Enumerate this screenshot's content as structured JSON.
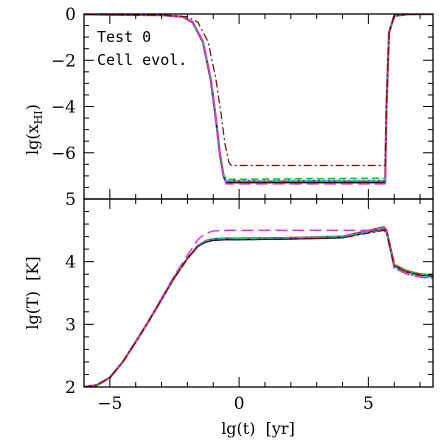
{
  "chart_data": [
    {
      "type": "line",
      "panel": "top",
      "ylabel_main": "lg(x",
      "ylabel_sub": "HI",
      "ylabel_end": ")",
      "xlim": [
        -6,
        7.5
      ],
      "ylim": [
        -8,
        0
      ],
      "yticks": [
        0,
        -2,
        -4,
        -6
      ],
      "ytick_labels": [
        "0",
        "−2",
        "−4",
        "−6"
      ],
      "annotations": [
        "Test 0",
        "Cell evol."
      ],
      "series": [
        {
          "color": "#e02020",
          "style": "solid",
          "width": 2.2,
          "x": [
            -6,
            -3,
            -2.2,
            -1.8,
            -1.4,
            -1.1,
            -0.9,
            -0.75,
            -0.6,
            -0.5,
            5.65,
            5.7,
            5.8,
            6.0,
            6.5,
            7.5
          ],
          "y": [
            -0.02,
            -0.05,
            -0.12,
            -0.35,
            -1.2,
            -2.8,
            -4.5,
            -6.0,
            -7.0,
            -7.25,
            -7.25,
            -4.0,
            -0.8,
            -0.08,
            -0.01,
            0
          ]
        },
        {
          "color": "#000000",
          "style": "solid",
          "width": 1.2,
          "x": [
            -6,
            -3,
            -2.2,
            -1.8,
            -1.4,
            -1.1,
            -0.9,
            -0.75,
            -0.6,
            -0.5,
            5.65,
            5.7,
            5.8,
            6.0,
            6.5,
            7.5
          ],
          "y": [
            -0.02,
            -0.05,
            -0.12,
            -0.38,
            -1.25,
            -2.9,
            -4.6,
            -6.1,
            -7.05,
            -7.3,
            -7.3,
            -4.0,
            -0.8,
            -0.08,
            -0.01,
            0
          ]
        },
        {
          "color": "#22c022",
          "style": "dashed",
          "width": 1.6,
          "x": [
            -6,
            -3,
            -2.2,
            -1.8,
            -1.4,
            -1.1,
            -0.9,
            -0.75,
            -0.6,
            -0.5,
            5.65,
            5.7,
            5.8,
            6.0,
            6.5,
            7.5
          ],
          "y": [
            -0.02,
            -0.05,
            -0.12,
            -0.35,
            -1.2,
            -2.8,
            -4.5,
            -6.0,
            -6.95,
            -7.15,
            -7.1,
            -4.0,
            -0.8,
            -0.08,
            -0.01,
            0
          ]
        },
        {
          "color": "#2050e0",
          "style": "dotted",
          "width": 1.6,
          "x": [
            -6,
            -3,
            -2.2,
            -1.8,
            -1.4,
            -1.1,
            -0.9,
            -0.75,
            -0.6,
            -0.5,
            5.65,
            5.7,
            5.8,
            6.0,
            6.5,
            7.5
          ],
          "y": [
            -0.02,
            -0.05,
            -0.12,
            -0.35,
            -1.2,
            -2.8,
            -4.5,
            -6.0,
            -7.0,
            -7.2,
            -7.2,
            -4.0,
            -0.8,
            -0.08,
            -0.01,
            0
          ]
        },
        {
          "color": "#20b8c8",
          "style": "dashdot",
          "width": 1.4,
          "x": [
            -6,
            -3,
            -2.2,
            -1.8,
            -1.4,
            -1.1,
            -0.9,
            -0.75,
            -0.6,
            -0.5,
            5.65,
            5.7,
            5.8,
            6.0,
            6.5,
            7.5
          ],
          "y": [
            -0.02,
            -0.05,
            -0.12,
            -0.35,
            -1.2,
            -2.8,
            -4.5,
            -6.0,
            -7.0,
            -7.22,
            -7.22,
            -4.0,
            -0.8,
            -0.08,
            -0.01,
            0
          ]
        },
        {
          "color": "#e030e0",
          "style": "longdash",
          "width": 1.4,
          "x": [
            -6,
            -3,
            -2.2,
            -1.8,
            -1.4,
            -1.1,
            -0.9,
            -0.75,
            -0.6,
            -0.5,
            5.65,
            5.7,
            5.8,
            6.0,
            6.5,
            7.5
          ],
          "y": [
            -0.02,
            -0.05,
            -0.12,
            -0.35,
            -1.2,
            -2.8,
            -4.5,
            -6.0,
            -7.0,
            -7.35,
            -7.35,
            -4.0,
            -0.8,
            -0.08,
            -0.01,
            0
          ]
        },
        {
          "color": "#800000",
          "style": "dashdot",
          "width": 1.2,
          "x": [
            -6,
            -3,
            -2.0,
            -1.6,
            -1.2,
            -0.9,
            -0.7,
            -0.55,
            -0.4,
            -0.3,
            5.65,
            5.7,
            5.8,
            6.0,
            6.5,
            7.5
          ],
          "y": [
            -0.02,
            -0.05,
            -0.12,
            -0.35,
            -1.2,
            -2.8,
            -4.3,
            -5.6,
            -6.4,
            -6.55,
            -6.55,
            -4.0,
            -0.8,
            -0.08,
            -0.01,
            0
          ]
        }
      ]
    },
    {
      "type": "line",
      "panel": "bottom",
      "ylabel": "lg(T)  [K]",
      "xlabel": "lg(t)  [yr]",
      "xlim": [
        -6,
        7.5
      ],
      "ylim": [
        2,
        5
      ],
      "yticks": [
        2,
        3,
        4,
        5
      ],
      "ytick_labels": [
        "2",
        "3",
        "4",
        "5"
      ],
      "xticks": [
        -5,
        0,
        5
      ],
      "xtick_labels": [
        "−5",
        "0",
        "5"
      ],
      "series": [
        {
          "color": "#e02020",
          "style": "solid",
          "width": 2.2,
          "x": [
            -6,
            -5.5,
            -5,
            -4.5,
            -4,
            -3.5,
            -3,
            -2.5,
            -2,
            -1.6,
            -1.3,
            -1.0,
            -0.5,
            0,
            2,
            4,
            5.6,
            5.7,
            6,
            6.5,
            7,
            7.5
          ],
          "y": [
            2.0,
            2.03,
            2.15,
            2.4,
            2.72,
            3.05,
            3.4,
            3.75,
            4.05,
            4.25,
            4.33,
            4.36,
            4.37,
            4.37,
            4.38,
            4.4,
            4.55,
            4.5,
            3.95,
            3.85,
            3.8,
            3.78
          ]
        },
        {
          "color": "#000000",
          "style": "solid",
          "width": 1.2,
          "x": [
            -6,
            -5.5,
            -5,
            -4.5,
            -4,
            -3.5,
            -3,
            -2.5,
            -2,
            -1.6,
            -1.3,
            -1.0,
            -0.5,
            0,
            2,
            4,
            5.6,
            5.7,
            6,
            6.5,
            7,
            7.5
          ],
          "y": [
            2.0,
            2.03,
            2.15,
            2.4,
            2.72,
            3.05,
            3.4,
            3.75,
            4.05,
            4.24,
            4.31,
            4.34,
            4.35,
            4.35,
            4.36,
            4.38,
            4.52,
            4.47,
            3.93,
            3.83,
            3.78,
            3.76
          ]
        },
        {
          "color": "#22c022",
          "style": "dashed",
          "width": 1.6,
          "x": [
            -6,
            -5.5,
            -5,
            -4.5,
            -4,
            -3.5,
            -3,
            -2.5,
            -2,
            -1.6,
            -1.3,
            -1.0,
            -0.5,
            0,
            2,
            4,
            5.6,
            5.7,
            6,
            6.5,
            7,
            7.5
          ],
          "y": [
            2.0,
            2.03,
            2.15,
            2.4,
            2.72,
            3.05,
            3.4,
            3.75,
            4.05,
            4.25,
            4.33,
            4.36,
            4.37,
            4.37,
            4.38,
            4.4,
            4.5,
            4.46,
            3.95,
            3.85,
            3.8,
            3.78
          ]
        },
        {
          "color": "#2050e0",
          "style": "dotted",
          "width": 1.6,
          "x": [
            -6,
            -5.5,
            -5,
            -4.5,
            -4,
            -3.5,
            -3,
            -2.5,
            -2,
            -1.6,
            -1.3,
            -1.0,
            -0.5,
            0,
            2,
            4,
            5.6,
            5.7,
            6,
            6.5,
            7,
            7.5
          ],
          "y": [
            2.0,
            2.03,
            2.15,
            2.4,
            2.72,
            3.05,
            3.4,
            3.75,
            4.05,
            4.25,
            4.33,
            4.36,
            4.37,
            4.37,
            4.38,
            4.4,
            4.53,
            4.48,
            3.9,
            3.8,
            3.76,
            3.74
          ]
        },
        {
          "color": "#20b8c8",
          "style": "dashdot",
          "width": 1.4,
          "x": [
            -6,
            -5.5,
            -5,
            -4.5,
            -4,
            -3.5,
            -3,
            -2.5,
            -2,
            -1.6,
            -1.3,
            -1.0,
            -0.5,
            0,
            2,
            4,
            5.6,
            5.7,
            6,
            6.5,
            7,
            7.5
          ],
          "y": [
            2.0,
            2.03,
            2.15,
            2.4,
            2.72,
            3.05,
            3.4,
            3.75,
            4.05,
            4.25,
            4.33,
            4.36,
            4.37,
            4.37,
            4.38,
            4.4,
            4.54,
            4.49,
            3.92,
            3.82,
            3.77,
            3.75
          ]
        },
        {
          "color": "#e030e0",
          "style": "longdash",
          "width": 1.4,
          "x": [
            -6,
            -5.5,
            -5,
            -4.5,
            -4,
            -3.5,
            -3,
            -2.5,
            -2,
            -1.6,
            -1.3,
            -1.0,
            -0.5,
            0,
            2,
            4,
            5.6,
            5.7,
            6,
            6.5,
            7,
            7.5
          ],
          "y": [
            2.0,
            2.03,
            2.15,
            2.4,
            2.72,
            3.06,
            3.42,
            3.78,
            4.1,
            4.35,
            4.45,
            4.49,
            4.5,
            4.5,
            4.5,
            4.5,
            4.5,
            4.46,
            3.9,
            3.8,
            3.75,
            3.73
          ]
        },
        {
          "color": "#800000",
          "style": "dashdot",
          "width": 1.2,
          "x": [
            -6,
            -5.5,
            -5,
            -4.5,
            -4,
            -3.5,
            -3,
            -2.5,
            -2,
            -1.6,
            -1.3,
            -1.0,
            -0.5,
            0,
            2,
            4,
            5.6,
            5.7,
            6,
            6.5,
            7,
            7.5
          ],
          "y": [
            2.0,
            2.03,
            2.15,
            2.4,
            2.72,
            3.05,
            3.4,
            3.75,
            4.05,
            4.24,
            4.31,
            4.34,
            4.35,
            4.35,
            4.36,
            4.38,
            4.5,
            4.46,
            3.93,
            3.83,
            3.79,
            3.77
          ]
        }
      ]
    }
  ]
}
